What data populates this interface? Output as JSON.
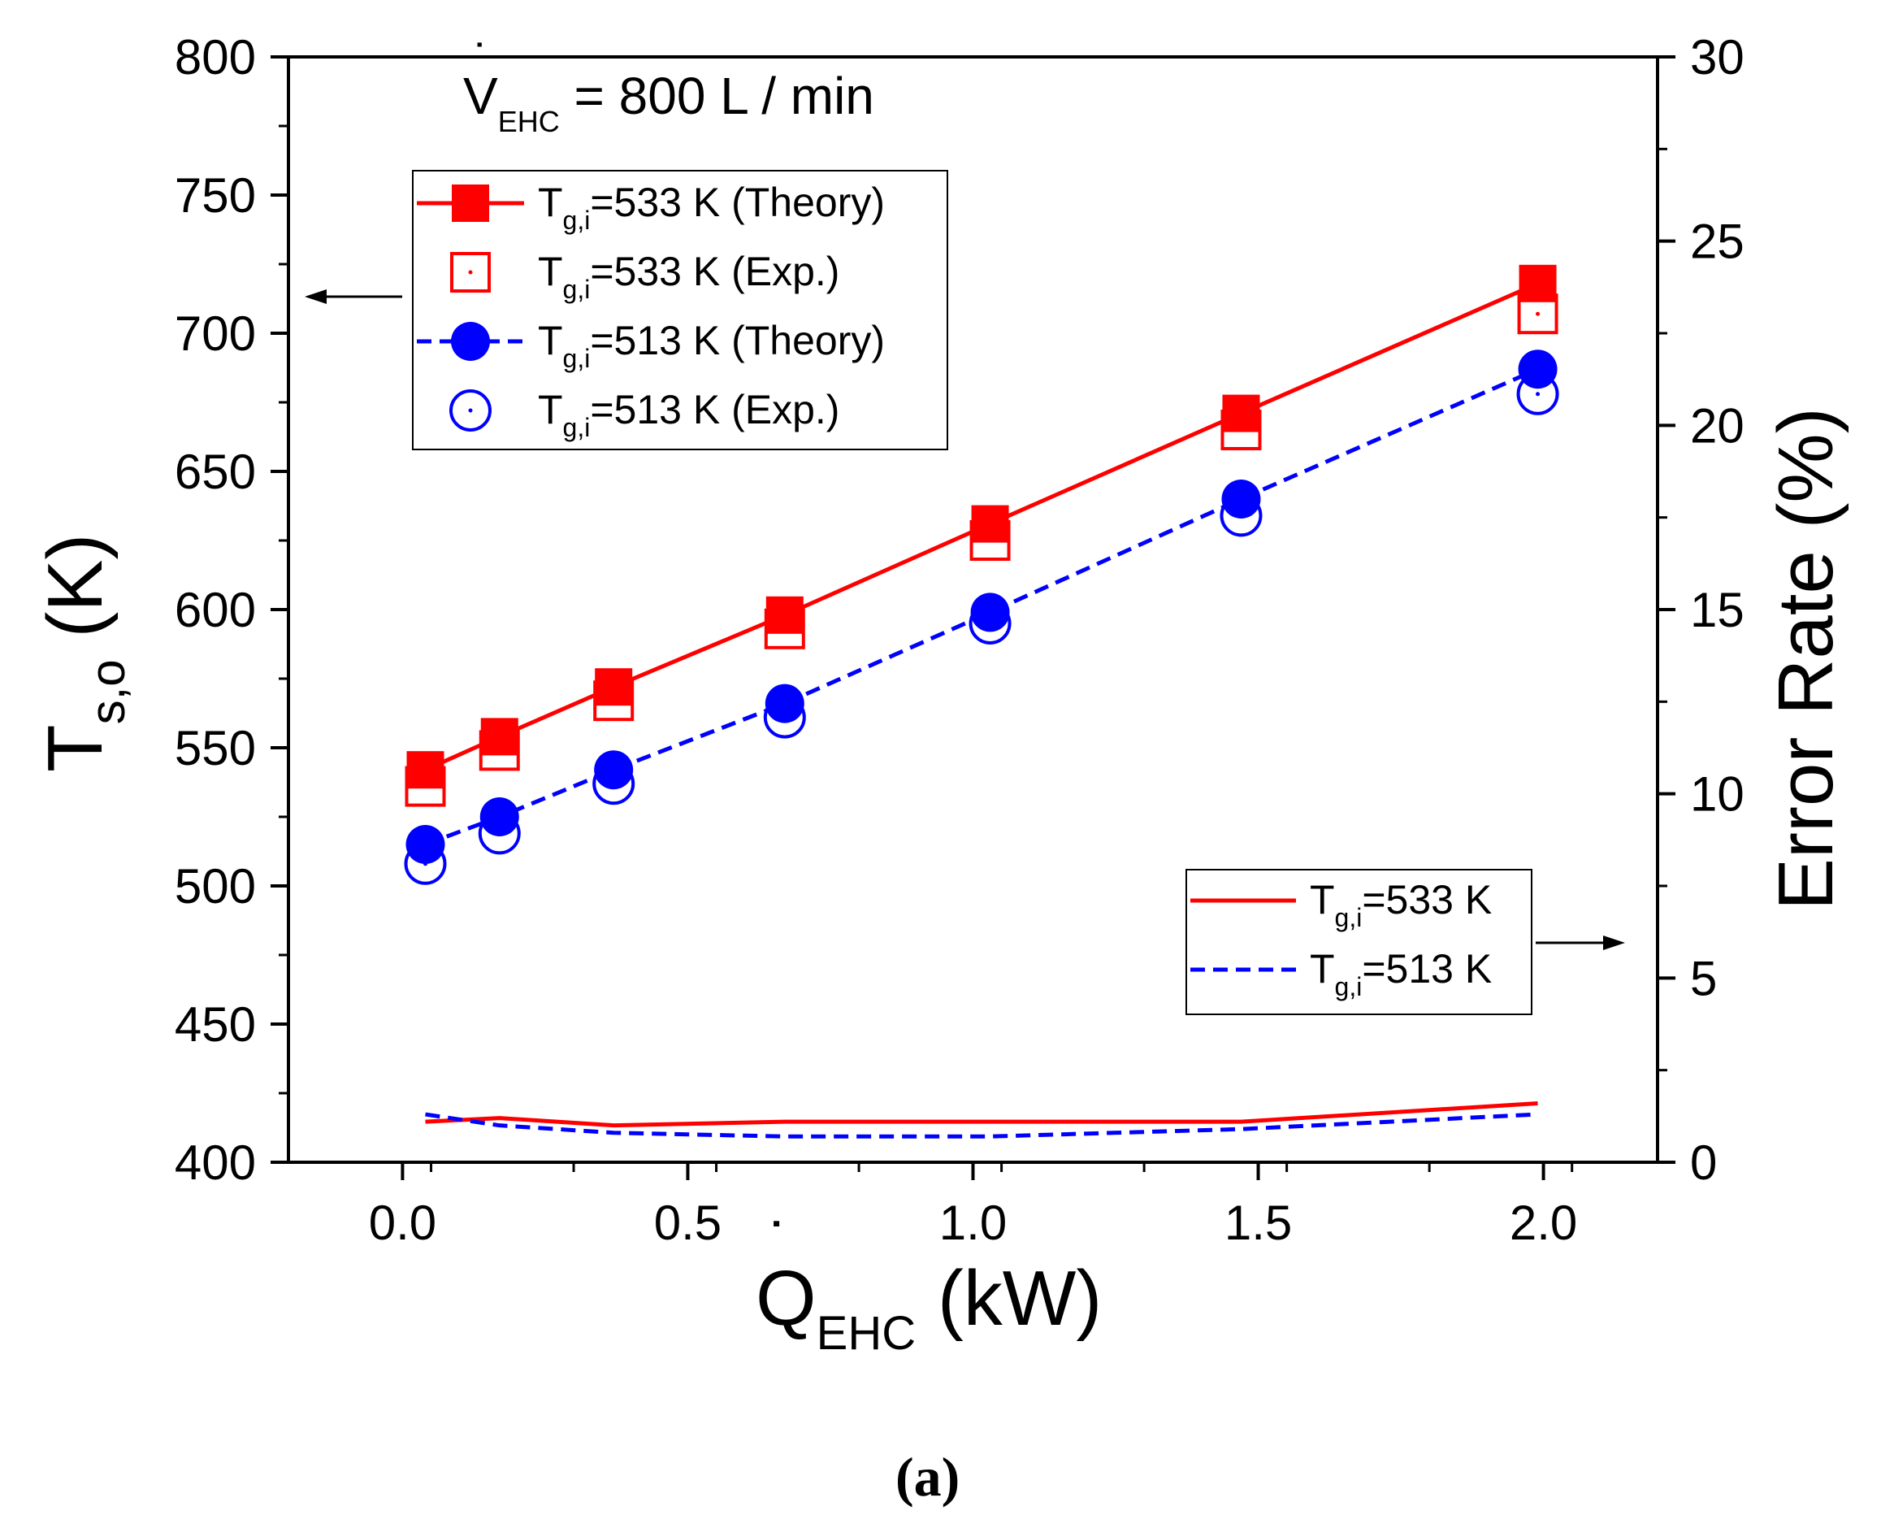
{
  "chart_data": {
    "type": "line",
    "x_axis": {
      "label_main": "Q",
      "label_sub": "EHC",
      "label_unit": " (kW)",
      "range": [
        -0.2,
        2.2
      ],
      "ticks": [
        0.0,
        0.5,
        1.0,
        1.5,
        2.0
      ],
      "tick_labels": [
        "0.0",
        "0.5",
        "1.0",
        "1.5",
        "2.0"
      ],
      "minor_step": 0.25
    },
    "y_left": {
      "label_main": "T",
      "label_sub": "s,o",
      "label_unit": " (K)",
      "range": [
        400,
        800
      ],
      "ticks": [
        400,
        450,
        500,
        550,
        600,
        650,
        700,
        750,
        800
      ],
      "tick_labels": [
        "400",
        "450",
        "500",
        "550",
        "600",
        "650",
        "700",
        "750",
        "800"
      ],
      "minor_step": 25
    },
    "y_right": {
      "label": "Error Rate (%)",
      "range": [
        0,
        30
      ],
      "ticks": [
        0,
        5,
        10,
        15,
        20,
        25,
        30
      ],
      "tick_labels": [
        "0",
        "5",
        "10",
        "15",
        "20",
        "25",
        "30"
      ],
      "minor_step": 2.5
    },
    "annotation": {
      "main": "V",
      "sub": "EHC",
      "rest": " = 800 L / min"
    },
    "x": [
      0.04,
      0.17,
      0.37,
      0.67,
      1.03,
      1.47,
      1.99
    ],
    "series_left": [
      {
        "name": "T_g,i=533 K (Theory)",
        "legend_pre": "T",
        "legend_sub": "g,i",
        "legend_post": "=533 K (Theory)",
        "color": "#ff0000",
        "marker": "square-filled",
        "line": "solid",
        "values": [
          542,
          554,
          572,
          598,
          631,
          671,
          718
        ]
      },
      {
        "name": "T_g,i=533 K (Exp.)",
        "legend_pre": "T",
        "legend_sub": "g,i",
        "legend_post": "=533 K (Exp.)",
        "color": "#ff0000",
        "marker": "square-open",
        "line": "none",
        "values": [
          536,
          549,
          567,
          593,
          625,
          665,
          707
        ]
      },
      {
        "name": "T_g,i=513 K (Theory)",
        "legend_pre": "T",
        "legend_sub": "g,i",
        "legend_post": "=513 K (Theory)",
        "color": "#0000ff",
        "marker": "circle-filled",
        "line": "dashed",
        "values": [
          515,
          525,
          542,
          566,
          599,
          640,
          687
        ]
      },
      {
        "name": "T_g,i=513 K (Exp.)",
        "legend_pre": "T",
        "legend_sub": "g,i",
        "legend_post": "=513 K (Exp.)",
        "color": "#0000ff",
        "marker": "circle-open",
        "line": "none",
        "values": [
          508,
          519,
          537,
          561,
          595,
          634,
          678
        ]
      }
    ],
    "series_right": [
      {
        "name": "T_g,i=533 K",
        "legend_pre": "T",
        "legend_sub": "g,i",
        "legend_post": "=533 K",
        "color": "#ff0000",
        "line": "solid",
        "values": [
          1.1,
          1.2,
          1.0,
          1.1,
          1.1,
          1.1,
          1.6
        ]
      },
      {
        "name": "T_g,i=513 K",
        "legend_pre": "T",
        "legend_sub": "g,i",
        "legend_post": "=513 K",
        "color": "#0000ff",
        "line": "dashed",
        "values": [
          1.3,
          1.0,
          0.8,
          0.7,
          0.7,
          0.9,
          1.3
        ]
      }
    ],
    "legend_left_position": "top-left",
    "legend_right_position": "middle-right",
    "grid": false,
    "caption": "(a)"
  }
}
